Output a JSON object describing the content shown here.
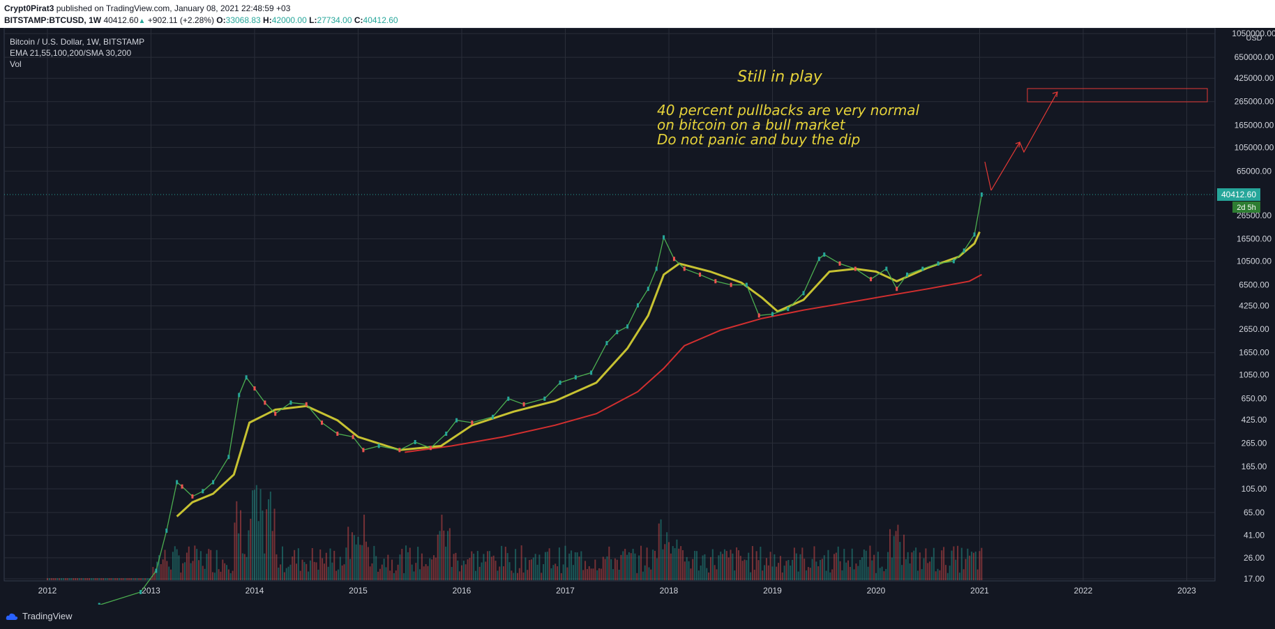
{
  "header": {
    "author": "Crypt0Pirat3",
    "published": "published on TradingView.com, January 08, 2021 22:48:59 +03",
    "symbol": "BITSTAMP:BTCUSD, 1W",
    "last": "40412.60",
    "change": "+902.11 (+2.28%)",
    "o_label": "O:",
    "o_value": "33068.83",
    "h_label": "H:",
    "h_value": "42000.00",
    "l_label": "L:",
    "l_value": "27734.00",
    "c_label": "C:",
    "c_value": "40412.60"
  },
  "legend": {
    "title": "Bitcoin / U.S. Dollar, 1W, BITSTAMP",
    "indicators": "EMA 21,55,100,200/SMA 30,200",
    "volume": "Vol"
  },
  "footer": {
    "brand": "TradingView"
  },
  "chart_data": {
    "type": "line",
    "scale": "log",
    "x_ticks": [
      "2012",
      "2013",
      "2014",
      "2015",
      "2016",
      "2017",
      "2018",
      "2019",
      "2020",
      "2021",
      "2022",
      "2023"
    ],
    "y_ticks": [
      "1050000.00",
      "650000.00",
      "425000.00",
      "265000.00",
      "165000.00",
      "105000.00",
      "65000.00",
      "26500.00",
      "16500.00",
      "10500.00",
      "6500.00",
      "4250.00",
      "2650.00",
      "1650.00",
      "1050.00",
      "650.00",
      "425.00",
      "265.00",
      "165.00",
      "105.00",
      "65.00",
      "41.00",
      "26.00",
      "17.00"
    ],
    "currency": "USD",
    "last_price_label": "40412.60",
    "countdown_label": "2d 5h",
    "annotations": [
      "Still in play",
      "40 percent pullbacks are very normal",
      "on bitcoin on a bull market",
      "Do not panic and buy the dip"
    ],
    "price_series": {
      "name": "BTCUSD",
      "x": [
        2012.0,
        2012.5,
        2012.9,
        2013.05,
        2013.15,
        2013.25,
        2013.3,
        2013.4,
        2013.5,
        2013.6,
        2013.75,
        2013.85,
        2013.92,
        2014.0,
        2014.1,
        2014.2,
        2014.35,
        2014.5,
        2014.65,
        2014.8,
        2014.95,
        2015.05,
        2015.2,
        2015.4,
        2015.55,
        2015.7,
        2015.85,
        2015.95,
        2016.1,
        2016.3,
        2016.45,
        2016.6,
        2016.8,
        2016.95,
        2017.1,
        2017.25,
        2017.4,
        2017.5,
        2017.6,
        2017.7,
        2017.8,
        2017.88,
        2017.95,
        2018.05,
        2018.15,
        2018.3,
        2018.45,
        2018.6,
        2018.75,
        2018.87,
        2019.0,
        2019.15,
        2019.3,
        2019.45,
        2019.5,
        2019.65,
        2019.8,
        2019.95,
        2020.1,
        2020.2,
        2020.3,
        2020.45,
        2020.6,
        2020.75,
        2020.85,
        2020.95,
        2021.02
      ],
      "y": [
        5,
        10,
        13,
        20,
        45,
        120,
        110,
        90,
        100,
        120,
        200,
        700,
        1000,
        800,
        600,
        480,
        600,
        580,
        400,
        320,
        300,
        230,
        250,
        230,
        270,
        240,
        320,
        420,
        400,
        450,
        650,
        580,
        650,
        900,
        1000,
        1100,
        2000,
        2500,
        2800,
        4300,
        6000,
        9000,
        17000,
        11000,
        9000,
        8000,
        7000,
        6500,
        6500,
        3500,
        3600,
        4000,
        5500,
        11000,
        12000,
        10000,
        9000,
        7300,
        9000,
        6000,
        8000,
        9000,
        10000,
        10500,
        13000,
        18000,
        40412
      ]
    },
    "ema21_series": {
      "x": [
        2013.25,
        2013.4,
        2013.6,
        2013.8,
        2013.95,
        2014.2,
        2014.5,
        2014.8,
        2015.0,
        2015.4,
        2015.8,
        2016.1,
        2016.5,
        2016.9,
        2017.3,
        2017.6,
        2017.8,
        2017.95,
        2018.1,
        2018.4,
        2018.7,
        2018.9,
        2019.05,
        2019.3,
        2019.55,
        2019.8,
        2020.0,
        2020.2,
        2020.5,
        2020.8,
        2020.95,
        2021.0
      ],
      "y": [
        60,
        80,
        95,
        140,
        400,
        520,
        560,
        420,
        300,
        230,
        250,
        380,
        500,
        620,
        900,
        1800,
        3500,
        8000,
        10000,
        8500,
        6800,
        5000,
        3800,
        4800,
        8500,
        9000,
        8500,
        7000,
        9200,
        11500,
        15000,
        19000
      ]
    },
    "sma200_series": {
      "x": [
        2015.45,
        2015.9,
        2016.4,
        2016.9,
        2017.3,
        2017.7,
        2017.95,
        2018.15,
        2018.5,
        2018.9,
        2019.3,
        2019.7,
        2020.1,
        2020.5,
        2020.9,
        2021.02
      ],
      "y": [
        220,
        250,
        300,
        380,
        480,
        750,
        1200,
        1900,
        2600,
        3300,
        3900,
        4500,
        5200,
        6000,
        7000,
        8000
      ]
    },
    "target_box_label": "",
    "volume": {
      "name": "Vol"
    }
  }
}
